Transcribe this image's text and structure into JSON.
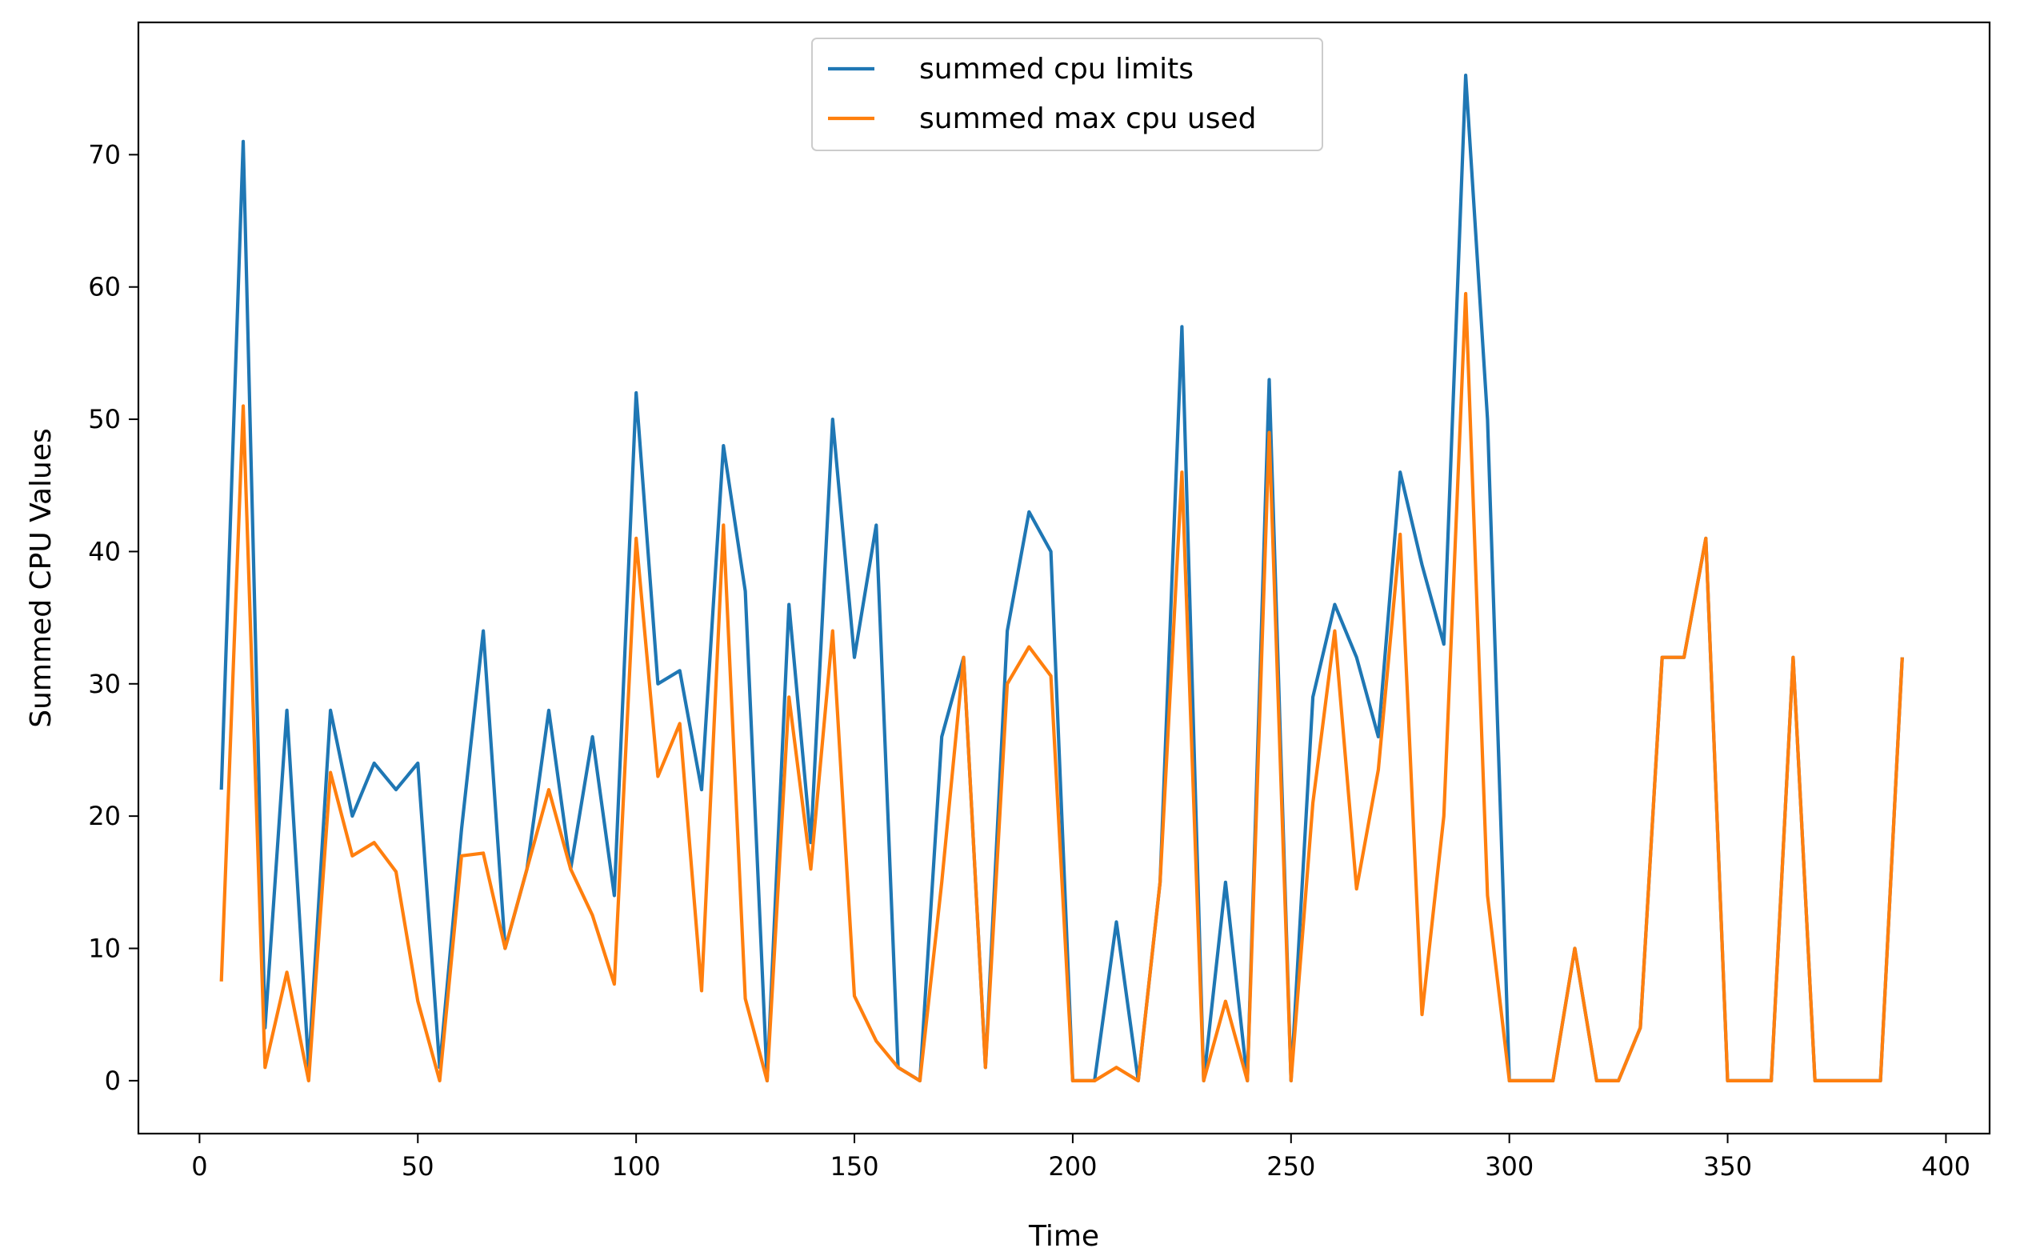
{
  "chart_data": {
    "type": "line",
    "title": "",
    "xlabel": "Time",
    "ylabel": "Summed CPU Values",
    "xlim": [
      -14,
      410
    ],
    "ylim": [
      -4,
      80
    ],
    "x_ticks": [
      0,
      50,
      100,
      150,
      200,
      250,
      300,
      350,
      400
    ],
    "y_ticks": [
      0,
      10,
      20,
      30,
      40,
      50,
      60,
      70
    ],
    "grid": false,
    "legend_placement": "upper center",
    "series": [
      {
        "name": "summed cpu limits",
        "color": "#1f77b4",
        "x": [
          5,
          10,
          15,
          20,
          25,
          30,
          35,
          40,
          45,
          50,
          55,
          60,
          65,
          70,
          75,
          80,
          85,
          90,
          95,
          100,
          105,
          110,
          115,
          120,
          125,
          130,
          135,
          140,
          145,
          150,
          155,
          160,
          165,
          170,
          175,
          180,
          185,
          190,
          195,
          200,
          205,
          210,
          215,
          220,
          225,
          230,
          235,
          240,
          245,
          250,
          255,
          260,
          265,
          270,
          275,
          280,
          285,
          290,
          295,
          300,
          305,
          310,
          315,
          320,
          325,
          330,
          335,
          340,
          345,
          350,
          355,
          360,
          365,
          370,
          375,
          380,
          385,
          390
        ],
        "y": [
          22,
          71,
          4,
          28,
          1,
          28,
          20,
          24,
          22,
          24,
          1,
          19,
          34,
          10,
          16,
          28,
          16,
          26,
          14,
          52,
          30,
          31,
          22,
          48,
          37,
          0,
          36,
          18,
          50,
          32,
          42,
          1,
          0,
          26,
          32,
          1,
          34,
          43,
          40,
          0,
          0,
          12,
          0,
          15,
          57,
          0,
          15,
          0,
          53,
          0,
          29,
          36,
          32,
          26,
          46,
          39,
          33,
          76,
          50,
          0,
          0,
          0,
          10,
          0,
          0,
          4,
          32,
          32,
          41,
          0,
          0,
          0,
          32,
          0,
          0,
          0,
          0,
          32
        ]
      },
      {
        "name": "summed max cpu used",
        "color": "#ff7f0e",
        "x": [
          5,
          10,
          15,
          20,
          25,
          30,
          35,
          40,
          45,
          50,
          55,
          60,
          65,
          70,
          75,
          80,
          85,
          90,
          95,
          100,
          105,
          110,
          115,
          120,
          125,
          130,
          135,
          140,
          145,
          150,
          155,
          160,
          165,
          170,
          175,
          180,
          185,
          190,
          195,
          200,
          205,
          210,
          215,
          220,
          225,
          230,
          235,
          240,
          245,
          250,
          255,
          260,
          265,
          270,
          275,
          280,
          285,
          290,
          295,
          300,
          305,
          310,
          315,
          320,
          325,
          330,
          335,
          340,
          345,
          350,
          355,
          360,
          365,
          370,
          375,
          380,
          385,
          390
        ],
        "y": [
          7.5,
          51,
          1,
          8.2,
          0,
          23.3,
          17,
          18,
          15.8,
          6,
          0,
          17,
          17.2,
          10,
          16,
          22,
          16,
          12.5,
          7.3,
          41,
          23,
          27,
          6.8,
          42,
          6.2,
          0,
          29,
          16,
          34,
          6.4,
          3,
          1,
          0,
          15,
          32,
          1,
          30,
          32.8,
          30.6,
          0,
          0,
          1,
          0,
          15,
          46,
          0,
          6,
          0,
          49,
          0,
          21,
          34,
          14.5,
          23.5,
          41.3,
          5,
          20,
          59.5,
          14,
          0,
          0,
          0,
          10,
          0,
          0,
          4,
          32,
          32,
          41,
          0,
          0,
          0,
          32,
          0,
          0,
          0,
          0,
          32
        ]
      }
    ]
  }
}
